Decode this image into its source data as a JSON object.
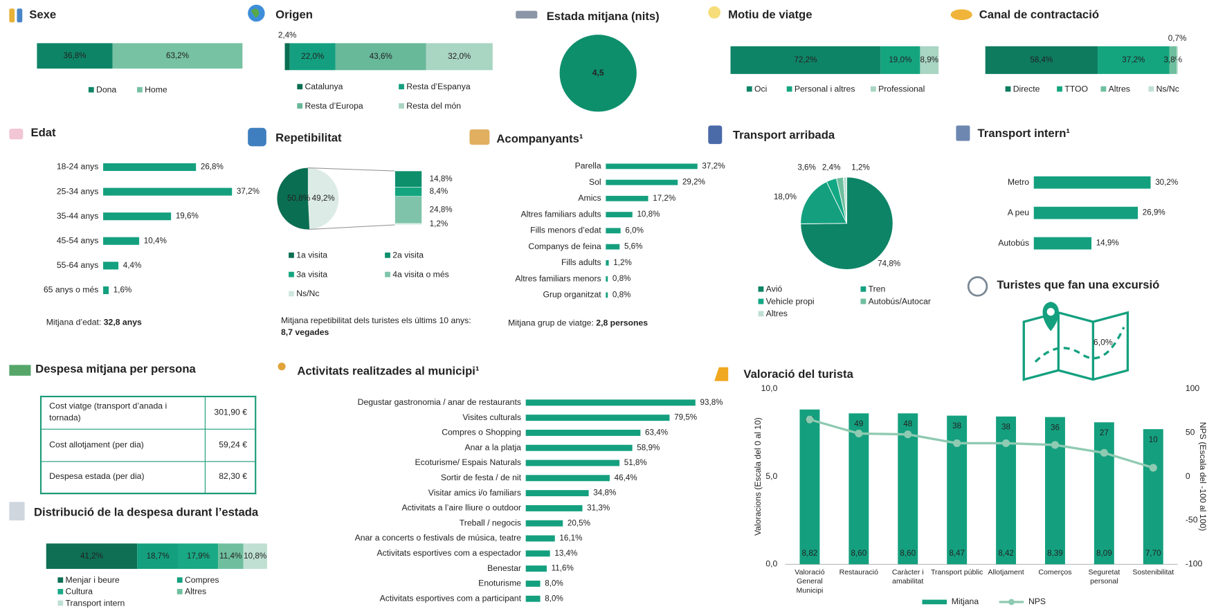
{
  "chart_data": [
    {
      "type": "stacked_bar",
      "title": "Sexe",
      "xlim": [
        0,
        100
      ],
      "series": [
        {
          "name": "Dona",
          "color": "#0e8466",
          "values": [
            36.8
          ],
          "value_labels": [
            "36,8%"
          ]
        },
        {
          "name": "Home",
          "color": "#76c2a2",
          "values": [
            63.2
          ],
          "value_labels": [
            "63,2%"
          ]
        }
      ]
    },
    {
      "type": "stacked_bar",
      "title": "Origen",
      "xlim": [
        0,
        100
      ],
      "series": [
        {
          "name": "Catalunya",
          "color": "#0a6e52",
          "values": [
            2.4
          ],
          "value_labels": [
            "2,4%"
          ]
        },
        {
          "name": "Resta d’Espanya",
          "color": "#14a080",
          "values": [
            22.0
          ],
          "value_labels": [
            "22,0%"
          ]
        },
        {
          "name": "Resta d’Europa",
          "color": "#68b89a",
          "values": [
            43.6
          ],
          "value_labels": [
            "43,6%"
          ]
        },
        {
          "name": "Resta del món",
          "color": "#a9d5c3",
          "values": [
            32.0
          ],
          "value_labels": [
            "32,0%"
          ]
        }
      ]
    },
    {
      "type": "single_value",
      "title": "Estada mitjana (nits)",
      "color": "#0e8f6c",
      "values": [
        4.5
      ],
      "value_labels": [
        "4,5"
      ]
    },
    {
      "type": "stacked_bar",
      "title": "Motiu de viatge",
      "xlim": [
        0,
        100
      ],
      "series": [
        {
          "name": "Oci",
          "color": "#0e8466",
          "values": [
            72.2
          ],
          "value_labels": [
            "72,2%"
          ]
        },
        {
          "name": "Personal i altres",
          "color": "#14a57f",
          "values": [
            19.0
          ],
          "value_labels": [
            "19,0%"
          ]
        },
        {
          "name": "Professional",
          "color": "#a9d5c3",
          "values": [
            8.9
          ],
          "value_labels": [
            "8,9%"
          ]
        }
      ]
    },
    {
      "type": "stacked_bar",
      "title": "Canal de contractació",
      "xlim": [
        0,
        100
      ],
      "series": [
        {
          "name": "Directe",
          "color": "#0e7b5f",
          "values": [
            58.4
          ],
          "value_labels": [
            "58,4%"
          ]
        },
        {
          "name": "TTOO",
          "color": "#14a57f",
          "values": [
            37.2
          ],
          "value_labels": [
            "37,2%"
          ]
        },
        {
          "name": "Altres",
          "color": "#6fbf9f",
          "values": [
            3.8
          ],
          "value_labels": [
            "3,8%"
          ]
        },
        {
          "name": "Ns/Nc",
          "color": "#bfe0d3",
          "values": [
            0.7
          ],
          "value_labels": [
            "0,7%"
          ]
        }
      ]
    },
    {
      "type": "hbar",
      "title": "Edat",
      "color": "#14a07f",
      "xlim": [
        0,
        40
      ],
      "categories": [
        "18-24 anys",
        "25-34 anys",
        "35-44 anys",
        "45-54 anys",
        "55-64 anys",
        "65 anys o més"
      ],
      "values": [
        26.8,
        37.2,
        19.6,
        10.4,
        4.4,
        1.6
      ],
      "value_labels": [
        "26,8%",
        "37,2%",
        "19,6%",
        "10,4%",
        "4,4%",
        "1,6%"
      ],
      "note": {
        "label": "Mitjana d’edat: ",
        "value": "32,8 anys"
      }
    },
    {
      "type": "pie_of_bar",
      "title": "Repetibilitat",
      "series": [
        {
          "name": "1a visita",
          "color": "#0a6e52",
          "values": [
            50.8
          ],
          "value_labels": [
            "50,8%"
          ]
        },
        {
          "name": "2a visita",
          "color": "#0e8f6c",
          "values": [
            14.8
          ],
          "value_labels": [
            "14,8%"
          ]
        },
        {
          "name": "3a visita",
          "color": "#14a57f",
          "values": [
            8.4
          ],
          "value_labels": [
            "8,4%"
          ]
        },
        {
          "name": "4a visita o més",
          "color": "#7fc4aa",
          "values": [
            24.8
          ],
          "value_labels": [
            "24,8%"
          ]
        },
        {
          "name": "Ns/Nc",
          "color": "#cfe8de",
          "values": [
            1.2
          ],
          "value_labels": [
            "1,2%"
          ]
        }
      ],
      "rest": {
        "color": "#dcebe5",
        "values": [
          49.2
        ],
        "value_labels": [
          "49,2%"
        ]
      },
      "note": {
        "label": "Mitjana repetibilitat dels turistes els últims 10 anys: ",
        "value": "8,7 vegades"
      }
    },
    {
      "type": "hbar",
      "title": "Acompanyants¹",
      "color": "#14a07f",
      "xlim": [
        0,
        40
      ],
      "categories": [
        "Parella",
        "Sol",
        "Amics",
        "Altres familiars adults",
        "Fills menors d’edat",
        "Companys de feina",
        "Fills adults",
        "Altres familiars menors",
        "Grup organitzat"
      ],
      "values": [
        37.2,
        29.2,
        17.2,
        10.8,
        6.0,
        5.6,
        1.2,
        0.8,
        0.8
      ],
      "value_labels": [
        "37,2%",
        "29,2%",
        "17,2%",
        "10,8%",
        "6,0%",
        "5,6%",
        "1,2%",
        "0,8%",
        "0,8%"
      ],
      "note": {
        "label": "Mitjana grup de viatge: ",
        "value": "2,8 persones"
      }
    },
    {
      "type": "pie",
      "title": "Transport arribada",
      "series": [
        {
          "name": "Avió",
          "color": "#0e8466",
          "values": [
            74.8
          ],
          "value_labels": [
            "74,8%"
          ]
        },
        {
          "name": "Tren",
          "color": "#14a07f",
          "values": [
            18.0
          ],
          "value_labels": [
            "18,0%"
          ]
        },
        {
          "name": "Vehicle propi",
          "color": "#13a884",
          "values": [
            3.6
          ],
          "value_labels": [
            "3,6%"
          ]
        },
        {
          "name": "Autobús/Autocar",
          "color": "#6fbf9f",
          "values": [
            2.4
          ],
          "value_labels": [
            "2,4%"
          ]
        },
        {
          "name": "Altres",
          "color": "#bfe0d3",
          "values": [
            1.2
          ],
          "value_labels": [
            "1,2%"
          ]
        }
      ]
    },
    {
      "type": "hbar",
      "title": "Transport intern¹",
      "color": "#14a07f",
      "xlim": [
        0,
        40
      ],
      "categories": [
        "Metro",
        "A peu",
        "Autobús"
      ],
      "values": [
        30.2,
        26.9,
        14.9
      ],
      "value_labels": [
        "30,2%",
        "26,9%",
        "14,9%"
      ]
    },
    {
      "type": "single_value",
      "title": "Turistes que fan una excursió",
      "color": "#14a07f",
      "values": [
        6.0
      ],
      "value_labels": [
        "6,0%"
      ]
    },
    {
      "type": "table",
      "title": "Despesa mitjana per persona",
      "rows": [
        [
          "Cost viatge (transport d’anada i tornada)",
          "301,90 €"
        ],
        [
          "Cost allotjament (per dia)",
          "59,24 €"
        ],
        [
          "Despesa estada (per dia)",
          "82,30 €"
        ]
      ]
    },
    {
      "type": "stacked_bar",
      "title": "Distribució de la despesa durant l’estada",
      "xlim": [
        0,
        100
      ],
      "series": [
        {
          "name": "Menjar i beure",
          "color": "#0e6f55",
          "values": [
            41.2
          ],
          "value_labels": [
            "41,2%"
          ]
        },
        {
          "name": "Compres",
          "color": "#14a07f",
          "values": [
            18.7
          ],
          "value_labels": [
            "18,7%"
          ]
        },
        {
          "name": "Cultura",
          "color": "#1aa985",
          "values": [
            17.9
          ],
          "value_labels": [
            "17,9%"
          ]
        },
        {
          "name": "Altres",
          "color": "#6fbf9f",
          "values": [
            11.4
          ],
          "value_labels": [
            "11,4%"
          ]
        },
        {
          "name": "Transport intern",
          "color": "#bfe0d3",
          "values": [
            10.8
          ],
          "value_labels": [
            "10,8%"
          ]
        }
      ]
    },
    {
      "type": "hbar",
      "title": "Activitats realitzades al municipi¹",
      "color": "#14a07f",
      "xlim": [
        0,
        100
      ],
      "categories": [
        "Degustar gastronomia / anar de restaurants",
        "Visites culturals",
        "Compres o Shopping",
        "Anar a la platja",
        "Ecoturisme/ Espais Naturals",
        "Sortir de festa / de nit",
        "Visitar amics i/o familiars",
        "Activitats a l’aire lliure o outdoor",
        "Treball / negocis",
        "Anar a concerts o festivals de música, teatre",
        "Activitats esportives com a espectador",
        "Benestar",
        "Enoturisme",
        "Activitats esportives com a participant"
      ],
      "values": [
        93.8,
        79.5,
        63.4,
        58.9,
        51.8,
        46.4,
        34.8,
        31.3,
        20.5,
        16.1,
        13.4,
        11.6,
        8.0,
        8.0
      ],
      "value_labels": [
        "93,8%",
        "79,5%",
        "63,4%",
        "58,9%",
        "51,8%",
        "46,4%",
        "34,8%",
        "31,3%",
        "20,5%",
        "16,1%",
        "13,4%",
        "11,6%",
        "8,0%",
        "8,0%"
      ]
    },
    {
      "type": "combo",
      "title": "Valoració del turista",
      "categories": [
        "Valoració General Municipi",
        "Restauració",
        "Caràcter i amabilitat",
        "Transport públic",
        "Allotjament",
        "Comerços",
        "Seguretat personal",
        "Sostenibilitat"
      ],
      "y_label": "Valoracions (Escala del 0 al 10)",
      "y2_label": "NPS (Escala del -100 al 100)",
      "ylim": [
        0,
        10
      ],
      "yticks": [
        {
          "value": 0,
          "label": "0,0"
        },
        {
          "value": 5,
          "label": "5,0"
        },
        {
          "value": 10,
          "label": "10,0"
        }
      ],
      "y2lim": [
        -100,
        100
      ],
      "y2ticks": [
        -100,
        -50,
        0,
        50,
        100
      ],
      "series": [
        {
          "name": "Mitjana",
          "type": "bar",
          "color": "#14a07f",
          "values": [
            8.82,
            8.6,
            8.6,
            8.47,
            8.42,
            8.39,
            8.09,
            7.7
          ],
          "value_labels": [
            "8,82",
            "8,60",
            "8,60",
            "8,47",
            "8,42",
            "8,39",
            "8,09",
            "7,70"
          ]
        },
        {
          "name": "NPS",
          "type": "line",
          "axis": "y2",
          "color": "#8fcab2",
          "values": [
            65,
            49,
            48,
            38,
            38,
            36,
            27,
            10
          ]
        }
      ]
    }
  ]
}
